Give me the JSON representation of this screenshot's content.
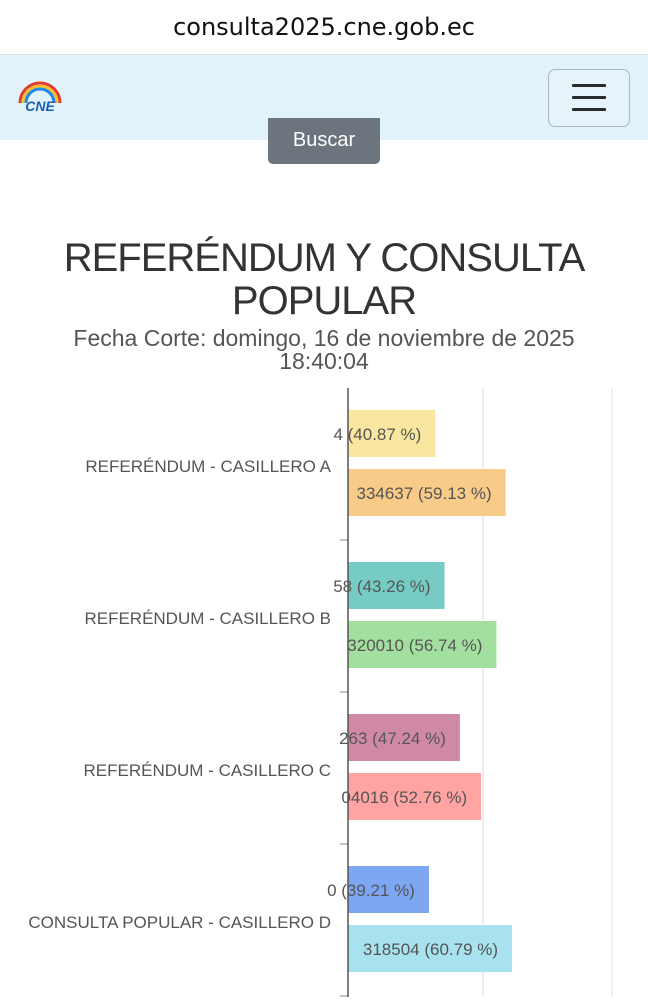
{
  "browser": {
    "url": "consulta2025.cne.gob.ec"
  },
  "navbar": {
    "logo_text": "CNE",
    "menu_icon": "hamburger-menu-icon"
  },
  "search": {
    "button_label": "Buscar"
  },
  "heading": {
    "title_line1": "REFERÉNDUM Y CONSULTA",
    "title_line2": "POPULAR",
    "fecha_line1": "Fecha Corte: domingo, 16 de noviembre de 2025",
    "fecha_line2": "18:40:04"
  },
  "chart_data": {
    "type": "bar",
    "orientation": "horizontal",
    "categories": [
      "REFERÉNDUM - CASILLERO A",
      "REFERÉNDUM - CASILLERO B",
      "REFERÉNDUM - CASILLERO C",
      "CONSULTA POPULAR - CASILLERO D"
    ],
    "bars": [
      [
        {
          "label": "4 (40.87 %)",
          "percent": 40.87,
          "color": "#f9e79f"
        },
        {
          "label": "334637 (59.13 %)",
          "percent": 59.13,
          "color": "#f8cb88"
        }
      ],
      [
        {
          "label": "58 (43.26 %)",
          "percent": 43.26,
          "color": "#76ccc4"
        },
        {
          "label": "320010 (56.74 %)",
          "percent": 56.74,
          "color": "#a3e0a0"
        }
      ],
      [
        {
          "label": "263 (47.24 %)",
          "percent": 47.24,
          "color": "#d089a5"
        },
        {
          "label": "04016 (52.76 %)",
          "percent": 52.76,
          "color": "#ffa3a3"
        }
      ],
      [
        {
          "label": "0 (39.21 %)",
          "percent": 39.21,
          "color": "#7ea7f3"
        },
        {
          "label": "318504 (60.79 %)",
          "percent": 60.79,
          "color": "#a8e2ee"
        }
      ]
    ],
    "legend": "none",
    "grid": true
  }
}
